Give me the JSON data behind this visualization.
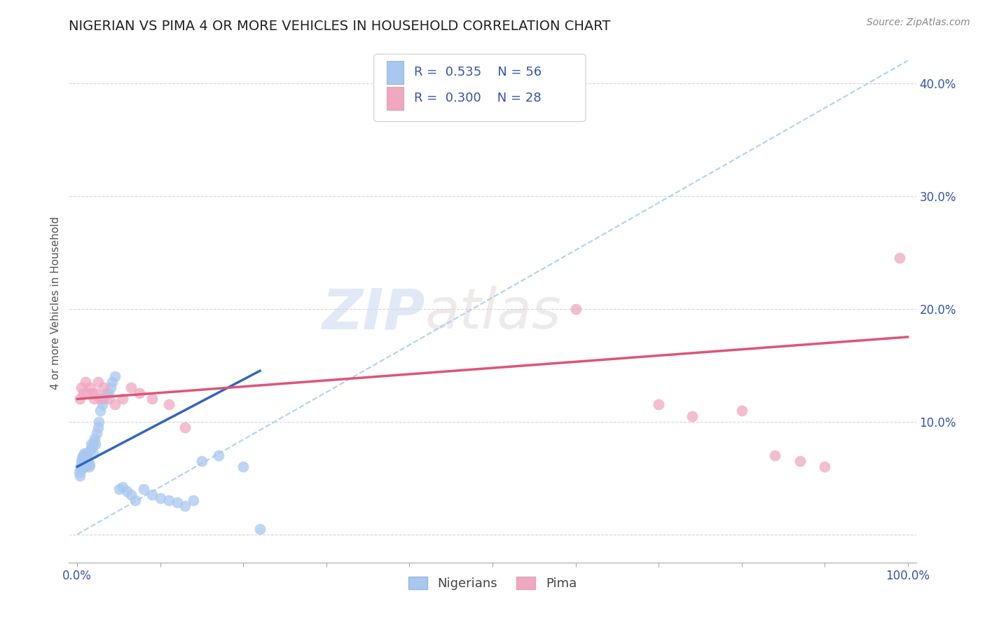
{
  "title": "NIGERIAN VS PIMA 4 OR MORE VEHICLES IN HOUSEHOLD CORRELATION CHART",
  "source": "Source: ZipAtlas.com",
  "ylabel_label": "4 or more Vehicles in Household",
  "xlim": [
    -0.01,
    1.01
  ],
  "ylim": [
    -0.025,
    0.435
  ],
  "xticks": [
    0.0,
    0.1,
    0.2,
    0.3,
    0.4,
    0.5,
    0.6,
    0.7,
    0.8,
    0.9,
    1.0
  ],
  "xtick_labels": [
    "0.0%",
    "",
    "",
    "",
    "",
    "",
    "",
    "",
    "",
    "",
    "100.0%"
  ],
  "yticks": [
    0.0,
    0.1,
    0.2,
    0.3,
    0.4
  ],
  "ytick_labels": [
    "",
    "10.0%",
    "20.0%",
    "30.0%",
    "40.0%"
  ],
  "nigerian_color": "#a8c8f0",
  "pima_color": "#f0a8c0",
  "nigerian_line_color": "#3366bb",
  "pima_line_color": "#dd5577",
  "diag_line_color": "#aaccee",
  "title_fontsize": 14,
  "label_fontsize": 11,
  "tick_fontsize": 12,
  "legend_R_N_color": "#3355aa",
  "watermark_zip": "ZIP",
  "watermark_atlas": "atlas",
  "nigerian_R": 0.535,
  "nigerian_N": 56,
  "pima_R": 0.3,
  "pima_N": 28,
  "nigerian_scatter_x": [
    0.002,
    0.003,
    0.004,
    0.004,
    0.005,
    0.005,
    0.006,
    0.006,
    0.007,
    0.007,
    0.008,
    0.008,
    0.009,
    0.009,
    0.01,
    0.01,
    0.011,
    0.011,
    0.012,
    0.013,
    0.014,
    0.015,
    0.016,
    0.017,
    0.018,
    0.019,
    0.02,
    0.021,
    0.022,
    0.023,
    0.025,
    0.026,
    0.028,
    0.03,
    0.032,
    0.035,
    0.038,
    0.04,
    0.042,
    0.045,
    0.05,
    0.055,
    0.06,
    0.065,
    0.07,
    0.08,
    0.09,
    0.1,
    0.11,
    0.12,
    0.13,
    0.14,
    0.15,
    0.17,
    0.2,
    0.22
  ],
  "nigerian_scatter_y": [
    0.055,
    0.052,
    0.058,
    0.06,
    0.062,
    0.065,
    0.058,
    0.068,
    0.062,
    0.07,
    0.065,
    0.072,
    0.06,
    0.068,
    0.063,
    0.07,
    0.062,
    0.072,
    0.068,
    0.065,
    0.06,
    0.062,
    0.075,
    0.08,
    0.078,
    0.072,
    0.082,
    0.085,
    0.08,
    0.09,
    0.095,
    0.1,
    0.11,
    0.115,
    0.12,
    0.125,
    0.125,
    0.13,
    0.135,
    0.14,
    0.04,
    0.042,
    0.038,
    0.035,
    0.03,
    0.04,
    0.035,
    0.032,
    0.03,
    0.028,
    0.025,
    0.03,
    0.065,
    0.07,
    0.06,
    0.005
  ],
  "pima_scatter_x": [
    0.003,
    0.005,
    0.007,
    0.01,
    0.012,
    0.015,
    0.018,
    0.02,
    0.022,
    0.025,
    0.028,
    0.032,
    0.038,
    0.045,
    0.055,
    0.065,
    0.075,
    0.09,
    0.11,
    0.13,
    0.6,
    0.7,
    0.74,
    0.8,
    0.84,
    0.87,
    0.9,
    0.99
  ],
  "pima_scatter_y": [
    0.12,
    0.13,
    0.125,
    0.135,
    0.125,
    0.13,
    0.125,
    0.12,
    0.125,
    0.135,
    0.12,
    0.13,
    0.12,
    0.115,
    0.12,
    0.13,
    0.125,
    0.12,
    0.115,
    0.095,
    0.2,
    0.115,
    0.105,
    0.11,
    0.07,
    0.065,
    0.06,
    0.245
  ],
  "nigerian_line_x": [
    0.0,
    0.22
  ],
  "nigerian_line_y": [
    0.06,
    0.145
  ],
  "pima_line_x": [
    0.0,
    1.0
  ],
  "pima_line_y": [
    0.12,
    0.175
  ],
  "diag_line_x": [
    0.0,
    1.0
  ],
  "diag_line_y": [
    0.0,
    0.42
  ]
}
